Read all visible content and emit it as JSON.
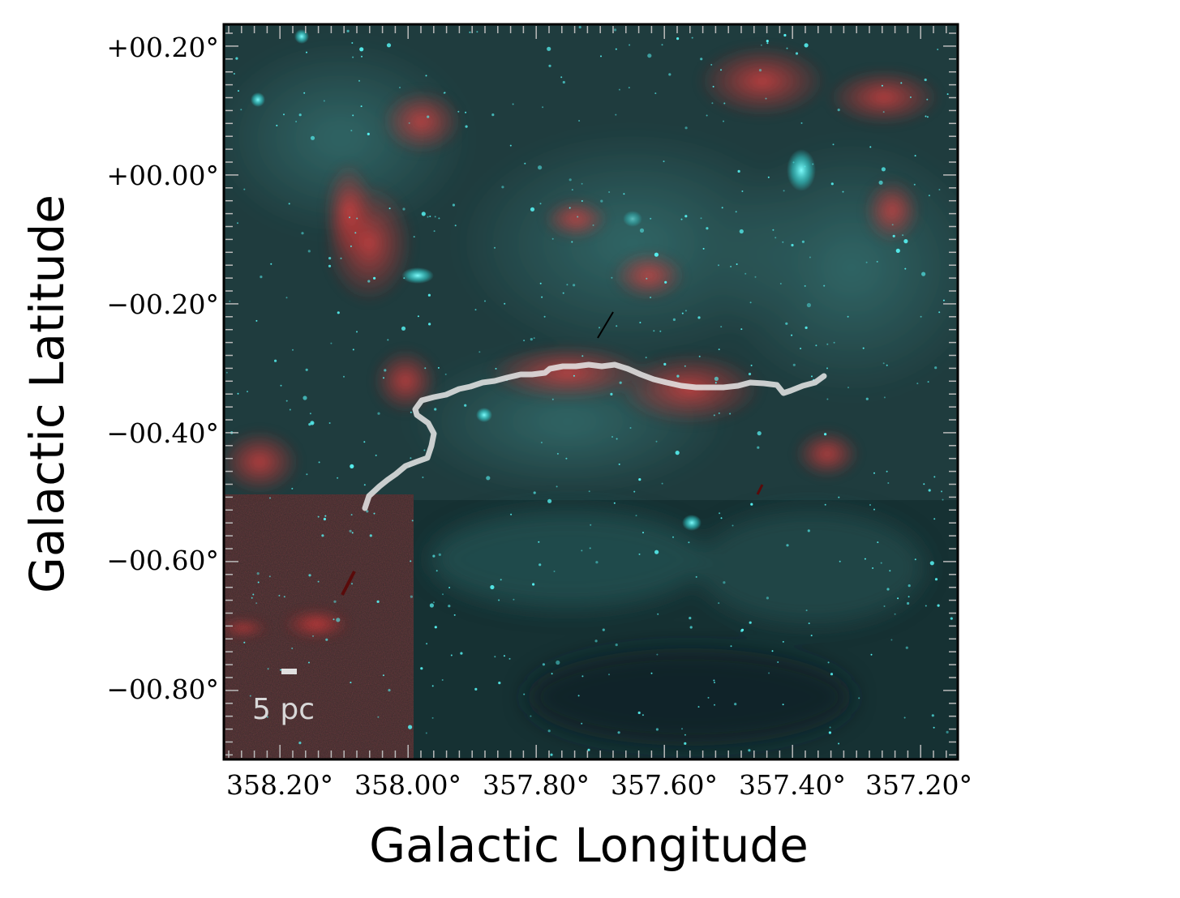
{
  "figure": {
    "xlabel": "Galactic Longitude",
    "ylabel": "Galactic Latitude",
    "x_ticks": [
      "358.20°",
      "358.00°",
      "357.80°",
      "357.60°",
      "357.40°",
      "357.20°"
    ],
    "y_ticks": [
      "+00.20°",
      "+00.00°",
      "−00.20°",
      "−00.40°",
      "−00.60°",
      "−00.80°"
    ],
    "scale_bar_label": "5 pc",
    "colors": {
      "background_base": "#1d3b3d",
      "cyan_emission": "#38e8e8",
      "red_emission": "#d4302f",
      "filament_trace": "#e8e8e8"
    }
  }
}
